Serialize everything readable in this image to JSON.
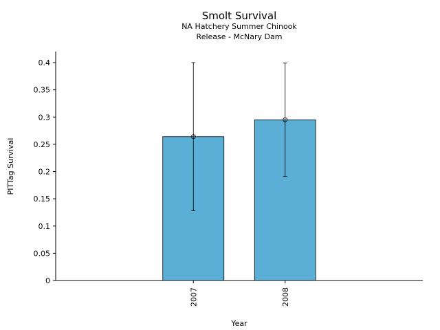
{
  "chart_data": {
    "type": "bar",
    "title": "Smolt Survival",
    "subtitle_lines": [
      "NA Hatchery Summer Chinook",
      "Release - McNary Dam"
    ],
    "xlabel": "Year",
    "ylabel": "PITTag Survival",
    "categories": [
      "2007",
      "2008"
    ],
    "values": [
      0.264,
      0.295
    ],
    "error_bars": [
      {
        "low": 0.128,
        "high": 0.4
      },
      {
        "low": 0.191,
        "high": 0.399
      }
    ],
    "ylim": [
      0,
      0.42
    ],
    "yticks": [
      {
        "value": 0,
        "label": "0"
      },
      {
        "value": 0.05,
        "label": "0.05"
      },
      {
        "value": 0.1,
        "label": "0.1"
      },
      {
        "value": 0.15,
        "label": "0.15"
      },
      {
        "value": 0.2,
        "label": "0.2"
      },
      {
        "value": 0.25,
        "label": "0.25"
      },
      {
        "value": 0.3,
        "label": "0.3"
      },
      {
        "value": 0.35,
        "label": "0.35"
      },
      {
        "value": 0.4,
        "label": "0.4"
      }
    ],
    "bar_color": "#5BAED6",
    "grid": false,
    "legend": "none"
  }
}
